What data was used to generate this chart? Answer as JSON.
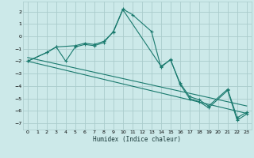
{
  "xlabel": "Humidex (Indice chaleur)",
  "bg_color": "#cce9e9",
  "grid_color": "#aacccc",
  "line_color": "#1a7a6e",
  "xlim": [
    -0.5,
    23.5
  ],
  "ylim": [
    -7.5,
    2.8
  ],
  "xticks": [
    0,
    1,
    2,
    3,
    4,
    5,
    6,
    7,
    8,
    9,
    10,
    11,
    12,
    13,
    14,
    15,
    16,
    17,
    18,
    19,
    20,
    21,
    22,
    23
  ],
  "yticks": [
    -7,
    -6,
    -5,
    -4,
    -3,
    -2,
    -1,
    0,
    1,
    2
  ],
  "series": [
    {
      "x": [
        0,
        2,
        3,
        4,
        5,
        6,
        7,
        8,
        9,
        10,
        11,
        13,
        14,
        15,
        16,
        17,
        18,
        19,
        21,
        22,
        23
      ],
      "y": [
        -2.0,
        -1.3,
        -0.85,
        -2.0,
        -0.85,
        -0.65,
        -0.75,
        -0.5,
        0.4,
        2.2,
        1.75,
        0.4,
        -2.5,
        -1.85,
        -3.85,
        -5.0,
        -5.25,
        -5.75,
        -4.35,
        -6.75,
        -6.25
      ],
      "marker": true
    },
    {
      "x": [
        0,
        2,
        3,
        5,
        6,
        7,
        8,
        9,
        10,
        14,
        15,
        16,
        17,
        18,
        19,
        21,
        22,
        23
      ],
      "y": [
        -2.0,
        -1.3,
        -0.85,
        -0.75,
        -0.55,
        -0.65,
        -0.4,
        0.35,
        2.15,
        -2.4,
        -1.9,
        -3.75,
        -4.85,
        -5.1,
        -5.6,
        -4.25,
        -6.55,
        -6.1
      ],
      "marker": true
    },
    {
      "x": [
        0,
        23
      ],
      "y": [
        -2.0,
        -6.2
      ],
      "marker": false
    },
    {
      "x": [
        0,
        23
      ],
      "y": [
        -1.7,
        -5.6
      ],
      "marker": false
    }
  ]
}
